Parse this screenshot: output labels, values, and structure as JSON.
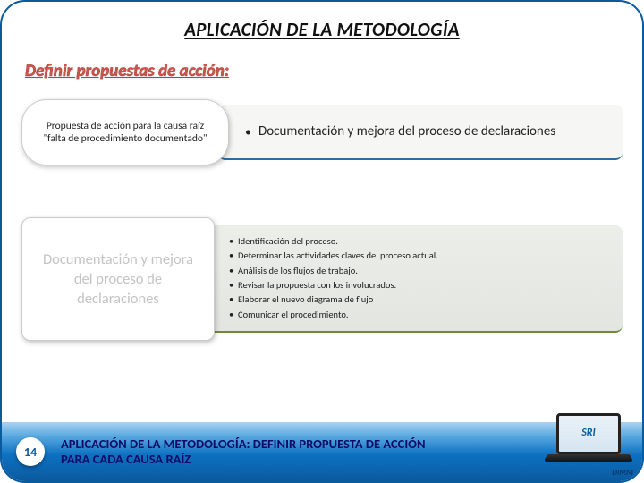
{
  "title": "APLICACIÓN DE LA METODOLOGÍA",
  "subtitle": "Definir propuestas de acción:",
  "row1": {
    "pill": "Propuesta de acción para la causa raíz \"falta de procedimiento documentado\"",
    "bar": "Documentación y mejora del proceso de declaraciones"
  },
  "row2": {
    "card": "Documentación y mejora del proceso de declaraciones",
    "items": [
      "Identificación del proceso.",
      "Determinar las actividades claves del proceso actual.",
      "Análisis de los flujos de trabajo.",
      "Revisar la propuesta con los involucrados.",
      "Elaborar el nuevo diagrama de flujo",
      "Comunicar el procedimiento."
    ]
  },
  "footer": {
    "page": "14",
    "text": "APLICACIÓN DE LA METODOLOGÍA: DEFINIR PROPUESTA DE ACCIÓN PARA CADA CAUSA RAÍZ",
    "logo": "SRI",
    "tag": "DIMM"
  },
  "colors": {
    "border": "#0a5a9e",
    "subtitle": "#c0392b",
    "footer_text": "#0c0c66"
  }
}
